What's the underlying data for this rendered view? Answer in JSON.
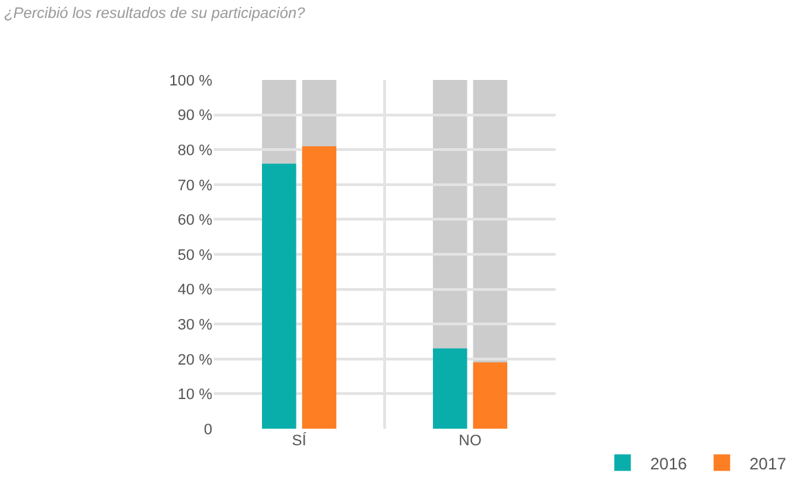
{
  "chart_data": {
    "type": "bar",
    "title": "¿Percibió los resultados de su participación?",
    "categories": [
      "SÍ",
      "NO"
    ],
    "series": [
      {
        "name": "2016",
        "color": "#09aeab",
        "values": [
          76,
          23
        ]
      },
      {
        "name": "2017",
        "color": "#fd7e23",
        "values": [
          81,
          19
        ]
      }
    ],
    "ylim": [
      0,
      100
    ],
    "yticks": [
      {
        "value": 0,
        "label": "0"
      },
      {
        "value": 10,
        "label": "10 %"
      },
      {
        "value": 20,
        "label": "20 %"
      },
      {
        "value": 30,
        "label": "30 %"
      },
      {
        "value": 40,
        "label": "40 %"
      },
      {
        "value": 50,
        "label": "50 %"
      },
      {
        "value": 60,
        "label": "60 %"
      },
      {
        "value": 70,
        "label": "70 %"
      },
      {
        "value": 80,
        "label": "80 %"
      },
      {
        "value": 90,
        "label": "90 %"
      },
      {
        "value": 100,
        "label": "100 %"
      }
    ],
    "grid": true,
    "legend": "bottom right"
  }
}
